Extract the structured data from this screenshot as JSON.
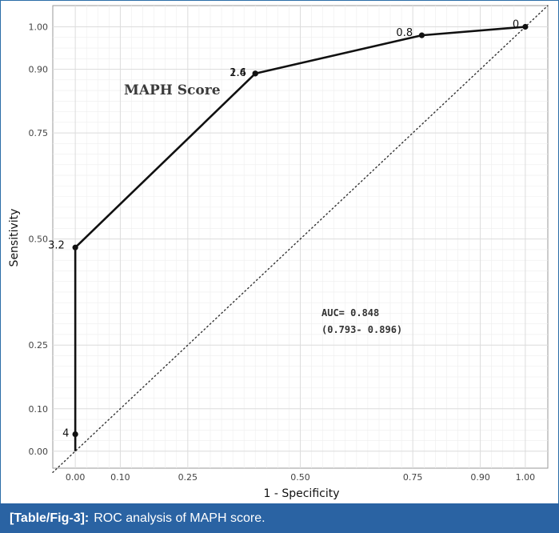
{
  "chart_data": {
    "type": "line",
    "xlabel": "1 - Specificity",
    "ylabel": "Sensitivity",
    "xlim": [
      -0.05,
      1.05
    ],
    "ylim": [
      -0.04,
      1.05
    ],
    "x_ticks": [
      0.0,
      0.1,
      0.25,
      0.5,
      0.75,
      0.9,
      1.0
    ],
    "x_tick_labels": [
      "0.00",
      "0.10",
      "0.25",
      "0.50",
      "0.75",
      "0.90",
      "1.00"
    ],
    "y_ticks": [
      0.0,
      0.1,
      0.25,
      0.5,
      0.75,
      0.9,
      1.0
    ],
    "y_tick_labels": [
      "0.00",
      "0.10",
      "0.25",
      "0.50",
      "0.75",
      "0.90",
      "1.00"
    ],
    "grid": true,
    "series": [
      {
        "name": "MAPH Score",
        "x": [
          0.0,
          0.0,
          0.0,
          0.4,
          0.4,
          0.77,
          1.0
        ],
        "y": [
          0.0,
          0.04,
          0.48,
          0.89,
          0.89,
          0.98,
          1.0
        ]
      }
    ],
    "points": [
      {
        "x": 0.0,
        "y": 0.04,
        "label": "4"
      },
      {
        "x": 0.0,
        "y": 0.48,
        "label": "3.2"
      },
      {
        "x": 0.4,
        "y": 0.89,
        "label": "2.4"
      },
      {
        "x": 0.4,
        "y": 0.89,
        "label": "1.6"
      },
      {
        "x": 0.77,
        "y": 0.98,
        "label": "0.8"
      },
      {
        "x": 1.0,
        "y": 1.0,
        "label": "0"
      }
    ],
    "reference_line": {
      "x": [
        -0.05,
        1.05
      ],
      "y": [
        -0.05,
        1.05
      ],
      "style": "dotted"
    },
    "annotations": {
      "series_title": "MAPH Score",
      "auc_line1": "AUC= 0.848",
      "auc_line2": "(0.793- 0.896)"
    }
  },
  "caption": {
    "label": "[Table/Fig-3]:",
    "text": "ROC analysis of MAPH score."
  },
  "colors": {
    "caption_bg": "#2a63a3",
    "line": "#111111",
    "grid": "#dcdcdc"
  }
}
